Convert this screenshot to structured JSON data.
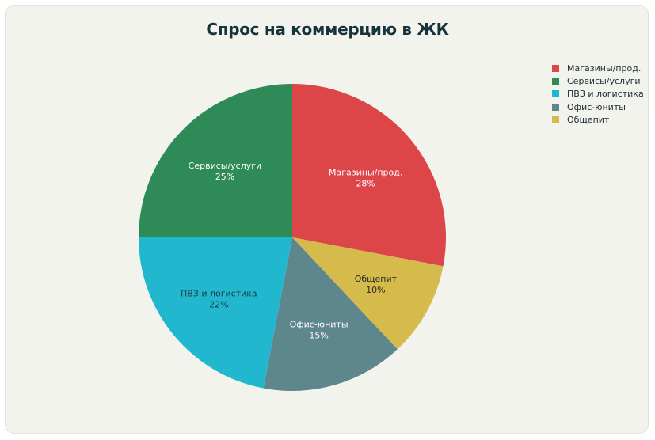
{
  "chart_data": {
    "type": "pie",
    "title": "Спрос на коммерцию в ЖК",
    "legend_position": "top-right",
    "slices": [
      {
        "label": "Магазины/прод.",
        "value": 28,
        "value_label": "28%",
        "color": "#dc4648",
        "text_color": "#ffffff"
      },
      {
        "label": "Общепит",
        "value": 10,
        "value_label": "10%",
        "color": "#d4bb4c",
        "text_color": "#2a2a22"
      },
      {
        "label": "Офис-юниты",
        "value": 15,
        "value_label": "15%",
        "color": "#5e868d",
        "text_color": "#ffffff"
      },
      {
        "label": "ПВЗ и логистика",
        "value": 22,
        "value_label": "22%",
        "color": "#21b8cf",
        "text_color": "#1d3a42"
      },
      {
        "label": "Сервисы/услуги",
        "value": 25,
        "value_label": "25%",
        "color": "#2e8b57",
        "text_color": "#ffffff"
      }
    ],
    "legend": [
      {
        "label": "Магазины/прод.",
        "color": "#dc4648"
      },
      {
        "label": "Сервисы/услуги",
        "color": "#2e8b57"
      },
      {
        "label": "ПВЗ и логистика",
        "color": "#21b8cf"
      },
      {
        "label": "Офис-юниты",
        "color": "#5e868d"
      },
      {
        "label": "Общепит",
        "color": "#d4bb4c"
      }
    ]
  }
}
